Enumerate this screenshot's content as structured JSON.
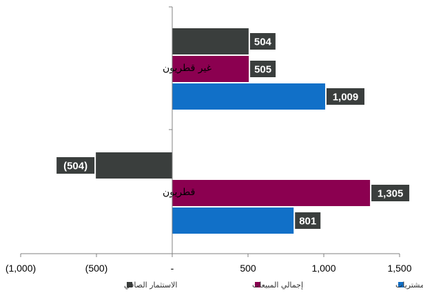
{
  "chart_data": {
    "type": "bar",
    "orientation": "horizontal",
    "categories": [
      "غير قطريون",
      "قطريون"
    ],
    "series": [
      {
        "name": "الاستثمار الصافي",
        "color": "#3a3e3d",
        "values": [
          504,
          -504
        ],
        "labels": [
          "504",
          "(504)"
        ]
      },
      {
        "name": "إجمالي المبيعات",
        "color": "#8b0050",
        "values": [
          505,
          1305
        ],
        "labels": [
          "505",
          "1,305"
        ]
      },
      {
        "name": "إجمالي المشتريات",
        "color": "#1170c8",
        "values": [
          1009,
          801
        ],
        "labels": [
          "1,009",
          "801"
        ]
      }
    ],
    "x_ticks": [
      {
        "value": -1000,
        "label": "(1,000)"
      },
      {
        "value": -500,
        "label": "(500)"
      },
      {
        "value": 0,
        "label": "-"
      },
      {
        "value": 500,
        "label": "500"
      },
      {
        "value": 1000,
        "label": "1,000"
      },
      {
        "value": 1500,
        "label": "1,500"
      }
    ],
    "xlim": [
      -1000,
      1500
    ],
    "label_box_color": "#3a3e3d",
    "grid": false,
    "legend_position": "bottom"
  }
}
